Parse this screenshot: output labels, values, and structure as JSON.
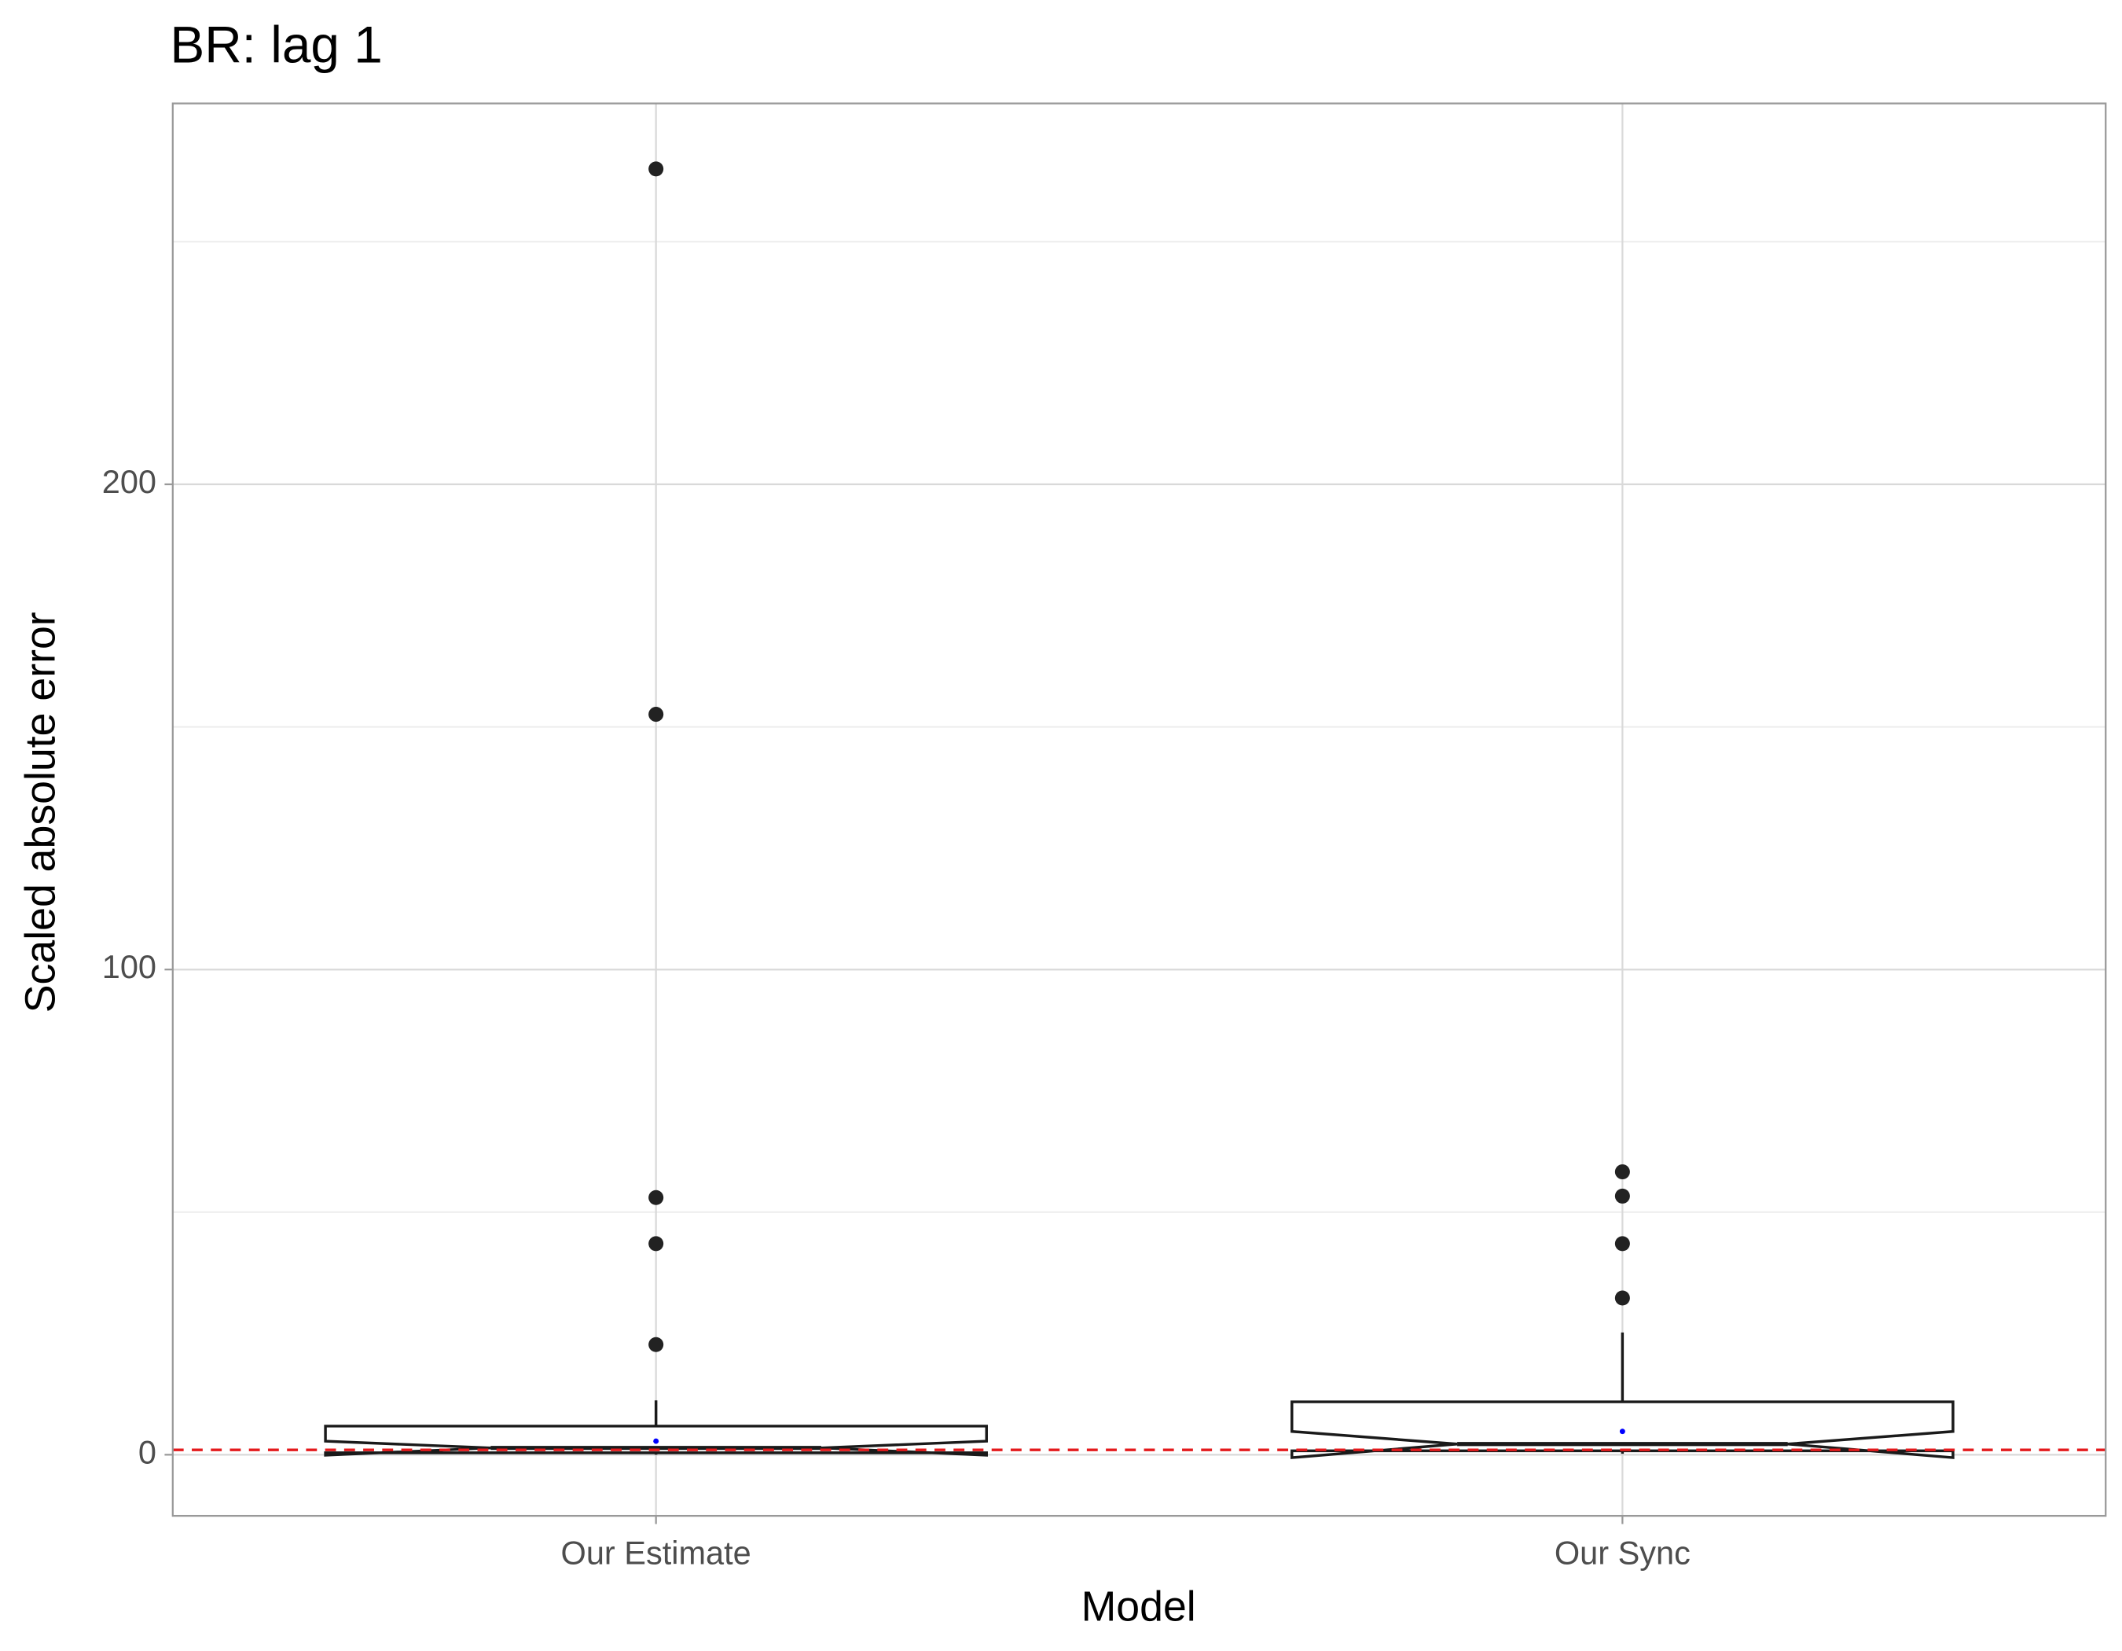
{
  "chart_data": {
    "type": "boxplot",
    "title": "BR: lag 1",
    "x_label": "Model",
    "y_label": "Scaled absolute error",
    "categories": [
      "Our Estimate",
      "Our Sync"
    ],
    "ylim": [
      -12.6,
      278.5
    ],
    "yticks": [
      0,
      100,
      200
    ],
    "minor_yticks": [
      50,
      150,
      250
    ],
    "grid": true,
    "notch": true,
    "box_color": "#1a1a1a",
    "outlier_color": "#222222",
    "mean_color": "#0000ff",
    "hline": {
      "value": 1,
      "color": "#e41a1c"
    },
    "q1": [
      0.4,
      0.8
    ],
    "median": [
      1.4,
      2.2
    ],
    "q3": [
      5.9,
      10.9
    ],
    "notch_low": [
      -0.1,
      -0.6
    ],
    "notch_high": [
      2.8,
      4.8
    ],
    "whisker_low": [
      0,
      0.2
    ],
    "whisker_high": [
      11.2,
      25.2
    ],
    "mean": [
      2.8,
      4.8
    ],
    "outliers": [
      [
        265,
        152.6,
        53,
        43.5,
        22.7
      ],
      [
        58.3,
        53.3,
        43.5,
        32.3
      ]
    ]
  }
}
